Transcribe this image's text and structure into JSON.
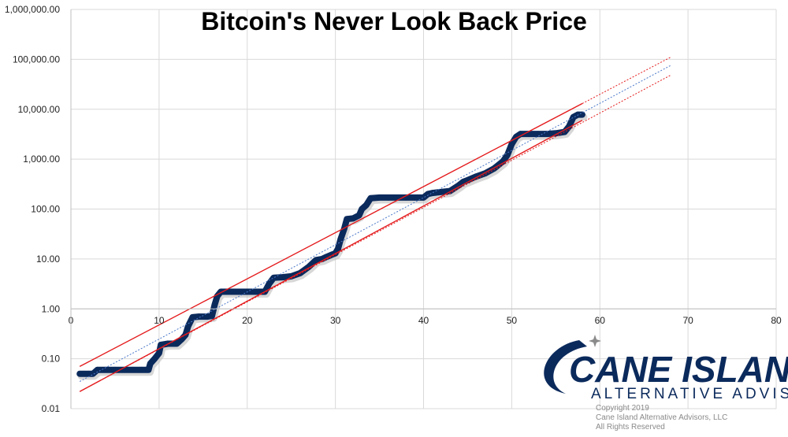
{
  "chart_data": {
    "type": "scatter",
    "title": "Bitcoin's Never Look Back Price",
    "xlabel": "",
    "ylabel": "",
    "x_scale": "linear",
    "y_scale": "log",
    "xlim": [
      0,
      80
    ],
    "ylim": [
      0.01,
      1000000
    ],
    "x_ticks": [
      "0",
      "10",
      "20",
      "30",
      "40",
      "50",
      "60",
      "70",
      "80"
    ],
    "y_ticks": [
      "0.01",
      "0.10",
      "1.00",
      "10.00",
      "100.00",
      "1,000.00",
      "10,000.00",
      "100,000.00",
      "1,000,000.00"
    ],
    "grid": true,
    "legend": "none",
    "colors": {
      "points": "#0b2a5c",
      "trend": "#4a78c8",
      "channel": "#e41a1c"
    },
    "series": [
      {
        "type": "scatter",
        "points": [
          [
            1.0,
            0.05
          ],
          [
            1.5,
            0.05
          ],
          [
            2.0,
            0.05
          ],
          [
            2.5,
            0.05
          ],
          [
            3.0,
            0.06
          ],
          [
            4.0,
            0.06
          ],
          [
            5.0,
            0.06
          ],
          [
            6.0,
            0.06
          ],
          [
            7.0,
            0.06
          ],
          [
            8.0,
            0.06
          ],
          [
            8.8,
            0.06
          ],
          [
            9.0,
            0.08
          ],
          [
            9.5,
            0.1
          ],
          [
            10.0,
            0.13
          ],
          [
            10.2,
            0.19
          ],
          [
            11.0,
            0.2
          ],
          [
            12.0,
            0.2
          ],
          [
            12.6,
            0.25
          ],
          [
            13.0,
            0.3
          ],
          [
            13.3,
            0.45
          ],
          [
            13.8,
            0.68
          ],
          [
            14.5,
            0.7
          ],
          [
            15.5,
            0.7
          ],
          [
            16.0,
            0.72
          ],
          [
            16.3,
            1.2
          ],
          [
            16.6,
            1.8
          ],
          [
            17.0,
            2.2
          ],
          [
            18.0,
            2.2
          ],
          [
            19.0,
            2.2
          ],
          [
            20.0,
            2.2
          ],
          [
            21.0,
            2.2
          ],
          [
            22.0,
            2.2
          ],
          [
            22.5,
            3.2
          ],
          [
            23.0,
            4.2
          ],
          [
            24.0,
            4.3
          ],
          [
            25.0,
            4.5
          ],
          [
            26.0,
            5.2
          ],
          [
            27.0,
            7.0
          ],
          [
            27.8,
            9.5
          ],
          [
            28.5,
            10
          ],
          [
            29.0,
            11
          ],
          [
            29.5,
            12
          ],
          [
            30.0,
            13
          ],
          [
            30.3,
            16
          ],
          [
            30.6,
            25
          ],
          [
            31.0,
            40
          ],
          [
            31.3,
            63
          ],
          [
            32.0,
            65
          ],
          [
            32.7,
            75
          ],
          [
            33.0,
            100
          ],
          [
            33.5,
            120
          ],
          [
            34.0,
            165
          ],
          [
            35.0,
            170
          ],
          [
            36.0,
            170
          ],
          [
            37.0,
            170
          ],
          [
            38.0,
            170
          ],
          [
            39.0,
            170
          ],
          [
            40.0,
            170
          ],
          [
            40.5,
            200
          ],
          [
            41.0,
            210
          ],
          [
            42.0,
            220
          ],
          [
            43.0,
            230
          ],
          [
            44.0,
            300
          ],
          [
            44.5,
            350
          ],
          [
            45.0,
            380
          ],
          [
            46.0,
            450
          ],
          [
            47.0,
            520
          ],
          [
            48.0,
            650
          ],
          [
            49.0,
            900
          ],
          [
            49.5,
            1200
          ],
          [
            50.0,
            2000
          ],
          [
            50.5,
            2800
          ],
          [
            51.0,
            3200
          ],
          [
            52.0,
            3200
          ],
          [
            53.0,
            3200
          ],
          [
            54.0,
            3200
          ],
          [
            55.0,
            3300
          ],
          [
            56.0,
            3500
          ],
          [
            56.5,
            4500
          ],
          [
            57.0,
            7000
          ],
          [
            57.5,
            7800
          ],
          [
            58.0,
            7800
          ]
        ]
      },
      {
        "type": "trendline",
        "style": "dotted",
        "points": [
          [
            1.0,
            0.035
          ],
          [
            68.0,
            75000
          ]
        ]
      },
      {
        "type": "channel-upper",
        "style": "solid",
        "points": [
          [
            1.0,
            0.07
          ],
          [
            58.0,
            13000
          ]
        ]
      },
      {
        "type": "channel-lower",
        "style": "solid",
        "points": [
          [
            1.0,
            0.022
          ],
          [
            58.0,
            6000
          ]
        ]
      },
      {
        "type": "channel-upper-extension",
        "style": "dotted",
        "points": [
          [
            58.0,
            13000
          ],
          [
            68.0,
            110000
          ]
        ]
      },
      {
        "type": "channel-lower-extension",
        "style": "dotted",
        "points": [
          [
            1.0,
            0.022
          ],
          [
            68.0,
            48000
          ]
        ]
      }
    ]
  },
  "logo": {
    "line1": "CANE ISLAND",
    "line2": "ALTERNATIVE ADVISORS",
    "copyright": "Copyright 2019",
    "company": "Cane Island Alternative Advisors, LLC",
    "rights": "All Rights Reserved"
  }
}
